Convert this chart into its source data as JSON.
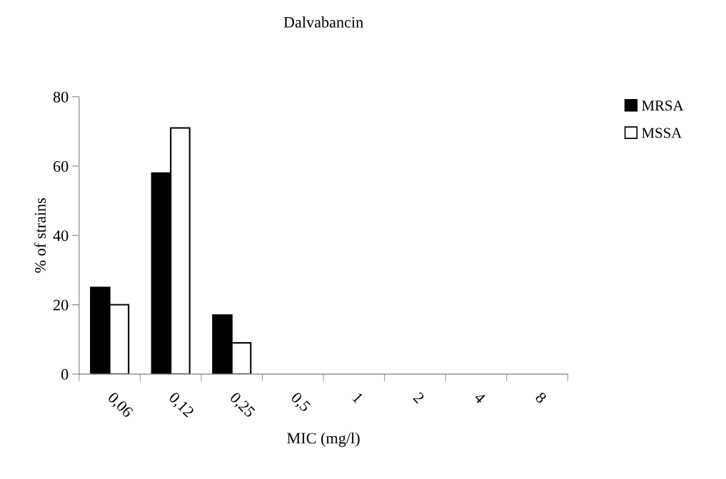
{
  "chart_data": {
    "type": "bar",
    "title": "Dalvabancin",
    "xlabel": "MIC (mg/l)",
    "ylabel": "% of strains",
    "categories": [
      "0,06",
      "0,12",
      "0,25",
      "0,5",
      "1",
      "2",
      "4",
      "8"
    ],
    "series": [
      {
        "name": "MRSA",
        "color": "#000000",
        "values": [
          25,
          58,
          17,
          0,
          0,
          0,
          0,
          0
        ]
      },
      {
        "name": "MSSA",
        "color": "#ffffff",
        "values": [
          20,
          71,
          9,
          0,
          0,
          0,
          0,
          0
        ]
      }
    ],
    "ylim": [
      0,
      80
    ],
    "yticks": [
      0,
      20,
      40,
      60,
      80
    ],
    "grid": false,
    "legend": "top right"
  }
}
